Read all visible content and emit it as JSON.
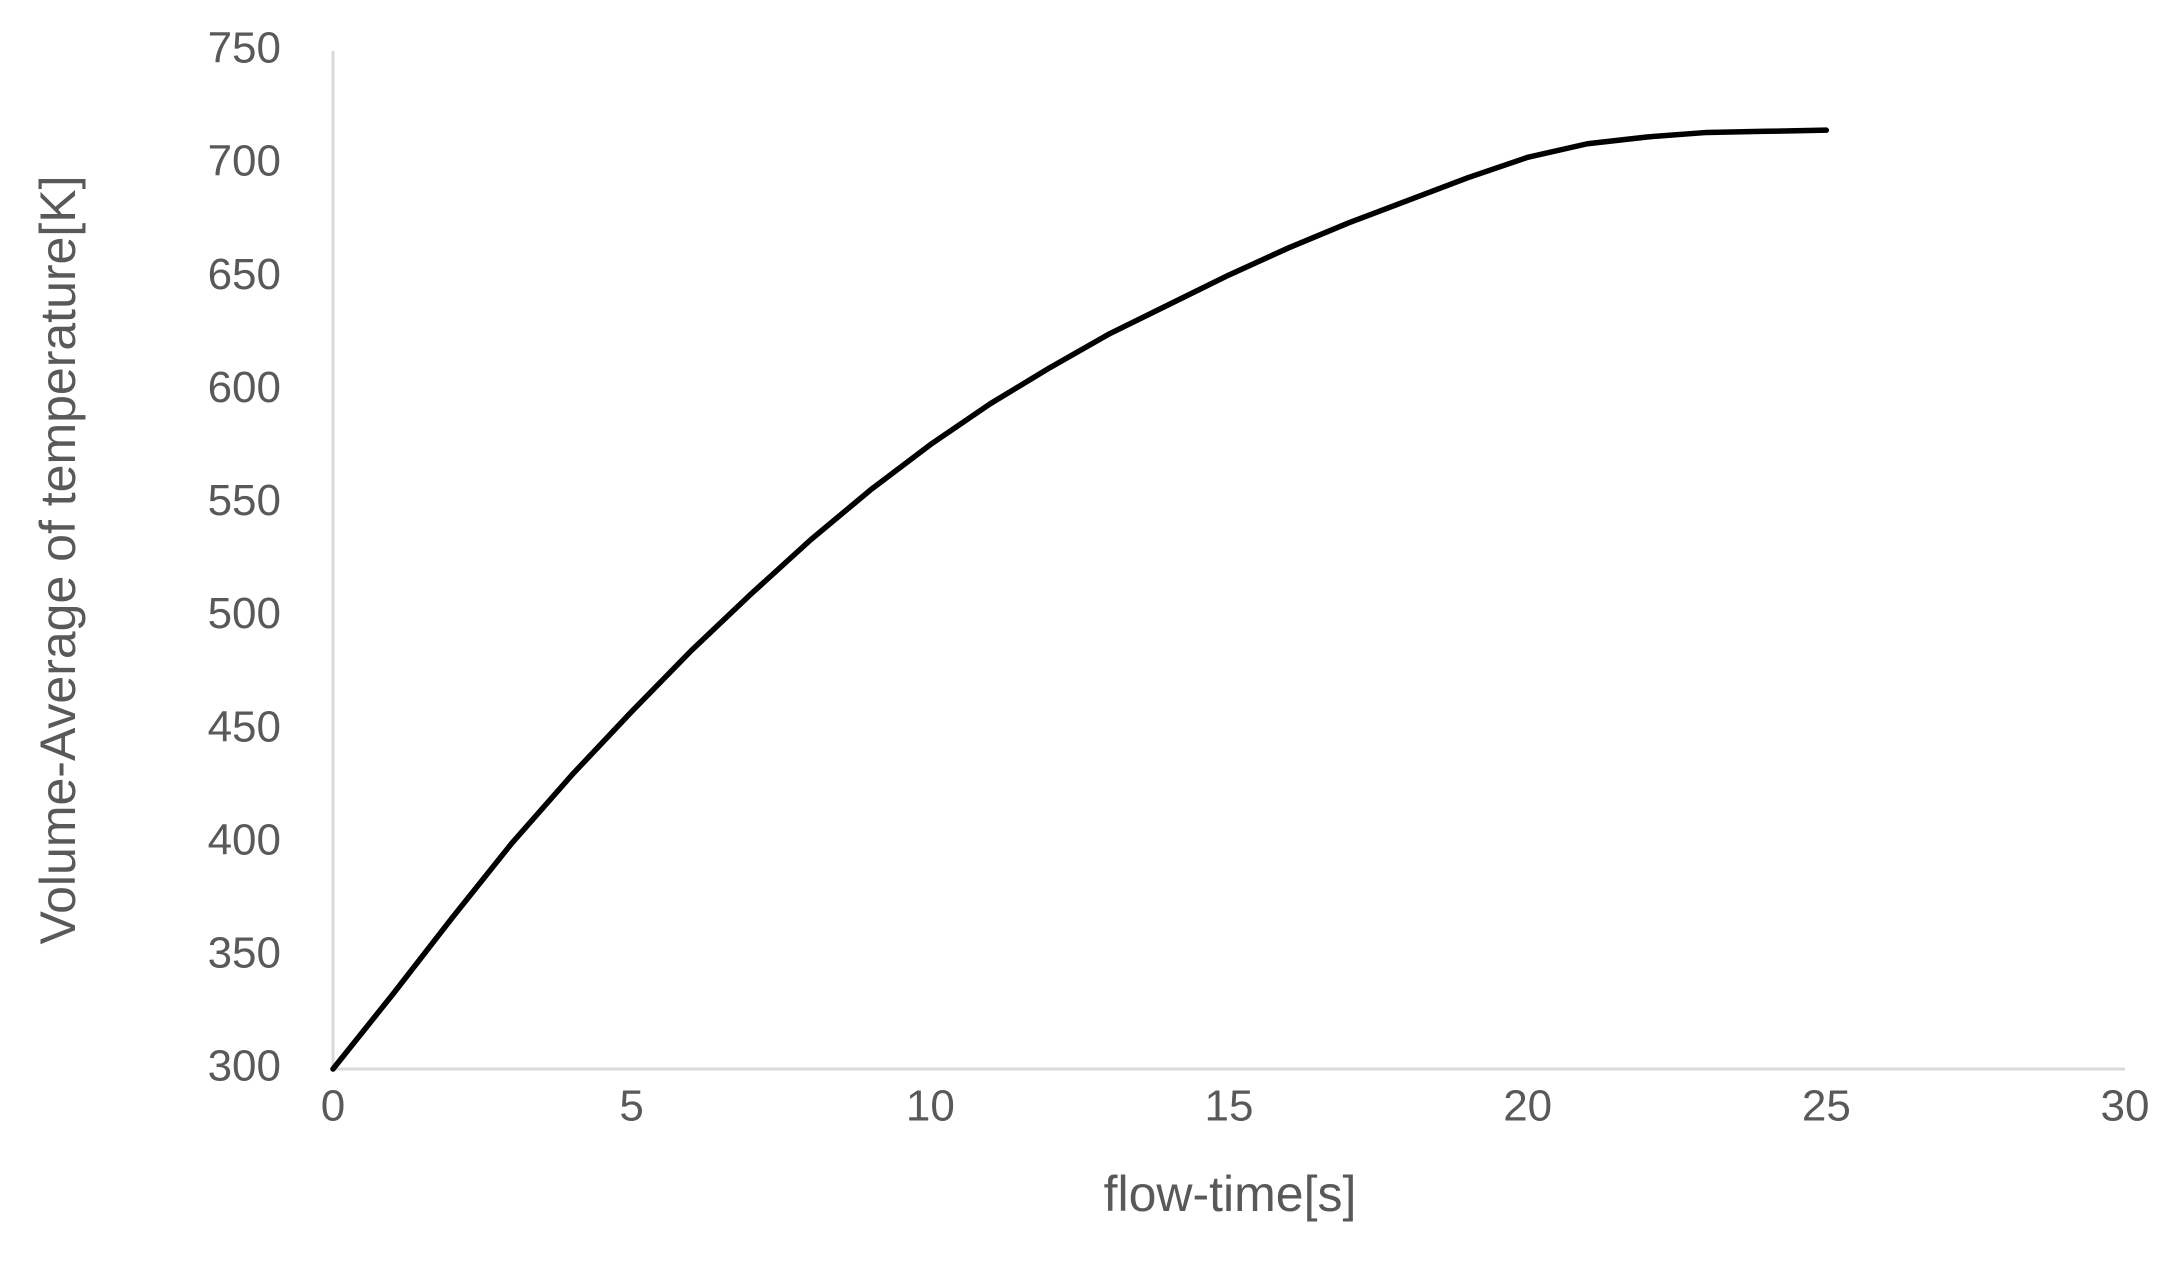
{
  "chart_data": {
    "type": "line",
    "x_label": "flow-time[s]",
    "y_label": "Volume-Average of temperature[K]",
    "x": [
      0,
      1,
      2,
      3,
      4,
      5,
      6,
      7,
      8,
      9,
      10,
      11,
      12,
      13,
      14,
      15,
      16,
      17,
      18,
      19,
      20,
      21,
      22,
      23,
      24,
      25
    ],
    "values": [
      300,
      333,
      367,
      400,
      430,
      458,
      485,
      510,
      534,
      556,
      576,
      594,
      610,
      625,
      638,
      651,
      663,
      674,
      684,
      694,
      703,
      709,
      712,
      714,
      714.5,
      715
    ],
    "color": "#000000",
    "xlim": [
      0,
      30
    ],
    "xticks": [
      0,
      5,
      10,
      15,
      20,
      25,
      30
    ],
    "ylim": [
      300,
      750
    ],
    "yticks": [
      300,
      350,
      400,
      450,
      500,
      550,
      600,
      650,
      700,
      750
    ],
    "grid": false
  }
}
